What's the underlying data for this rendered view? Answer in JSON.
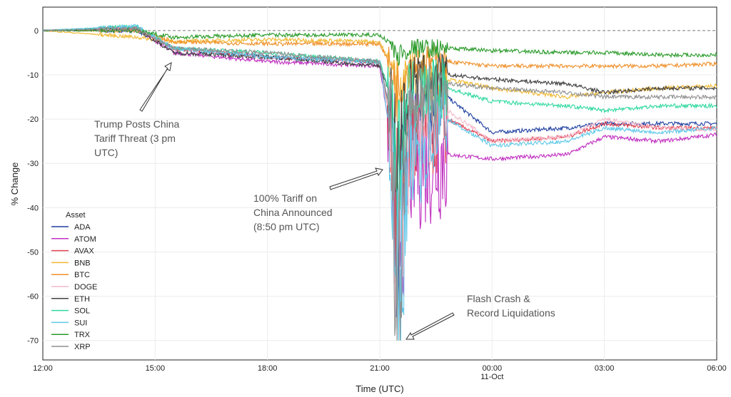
{
  "chart_data": {
    "type": "line",
    "title": "",
    "xlabel": "Time (UTC)",
    "ylabel": "% Change",
    "xlim_hours_since_12": [
      0,
      18
    ],
    "ylim": [
      -74.4,
      5.3
    ],
    "grid": true,
    "reference_line_y": 0,
    "x_ticks": [
      {
        "h": 0,
        "label": "12:00"
      },
      {
        "h": 3,
        "label": "15:00"
      },
      {
        "h": 6,
        "label": "18:00"
      },
      {
        "h": 9,
        "label": "21:00"
      },
      {
        "h": 12,
        "label": "00:00",
        "sub": "11-Oct"
      },
      {
        "h": 15,
        "label": "03:00"
      },
      {
        "h": 18,
        "label": "06:00"
      }
    ],
    "y_ticks": [
      0,
      -10,
      -20,
      -30,
      -40,
      -50,
      -60,
      -70
    ],
    "legend": {
      "title": "Asset",
      "placement": "lower-left"
    },
    "x_hours": [
      0,
      2.5,
      3.5,
      6,
      9,
      9.3,
      9.45,
      9.8,
      10.8,
      12,
      14,
      15,
      16.5,
      18
    ],
    "series": [
      {
        "name": "ADA",
        "color": "#1f3fa0",
        "values": [
          0,
          0,
          -4,
          -6,
          -7,
          -20,
          -45,
          -22,
          -15,
          -23,
          -22,
          -21,
          -21,
          -21
        ]
      },
      {
        "name": "ATOM",
        "color": "#c030c0",
        "values": [
          0,
          0.5,
          -5,
          -7,
          -8,
          -25,
          -50,
          -30,
          -28,
          -29,
          -28,
          -24,
          -25,
          -23.5
        ]
      },
      {
        "name": "AVAX",
        "color": "#e04050",
        "values": [
          0,
          0.5,
          -4,
          -6,
          -7,
          -22,
          -48,
          -25,
          -20,
          -25,
          -24,
          -21,
          -22,
          -22
        ]
      },
      {
        "name": "BNB",
        "color": "#f0b830",
        "values": [
          0,
          -1.5,
          -2.5,
          -2,
          -2.5,
          -8,
          -12,
          -10,
          -11,
          -13,
          -15,
          -14,
          -13,
          -12.5
        ]
      },
      {
        "name": "BTC",
        "color": "#f0902a",
        "values": [
          0,
          0,
          -2.5,
          -3,
          -3,
          -8,
          -14,
          -7,
          -7,
          -8,
          -8,
          -8,
          -8,
          -7.5
        ]
      },
      {
        "name": "DOGE",
        "color": "#f4b8c8",
        "values": [
          0,
          0.5,
          -4,
          -6,
          -7,
          -22,
          -50,
          -25,
          -18,
          -25,
          -24,
          -20,
          -22,
          -22.5
        ]
      },
      {
        "name": "ETH",
        "color": "#404040",
        "values": [
          0,
          0.5,
          -5,
          -6,
          -8,
          -15,
          -30,
          -12,
          -10,
          -11,
          -12,
          -14,
          -13,
          -13
        ]
      },
      {
        "name": "SOL",
        "color": "#30d8a0",
        "values": [
          0,
          1,
          -4,
          -5,
          -7,
          -15,
          -35,
          -15,
          -13,
          -16,
          -17,
          -18,
          -17,
          -17
        ]
      },
      {
        "name": "SUI",
        "color": "#60c8e8",
        "values": [
          0,
          1,
          -4,
          -6,
          -7,
          -25,
          -70,
          -28,
          -20,
          -26,
          -25,
          -22,
          -23,
          -22
        ]
      },
      {
        "name": "TRX",
        "color": "#2a9a2a",
        "values": [
          0,
          0,
          -1.5,
          -1,
          -1,
          -3,
          -6,
          -4,
          -4,
          -4.5,
          -5,
          -5,
          -5.5,
          -5.5
        ]
      },
      {
        "name": "XRP",
        "color": "#909090",
        "values": [
          0,
          0.5,
          -4,
          -5,
          -7,
          -20,
          -65,
          -18,
          -12,
          -13,
          -14,
          -15,
          -15,
          -15
        ]
      }
    ],
    "annotations": [
      {
        "lines": [
          "Trump Posts China",
          "Tariff Threat (3 pm",
          "UTC)"
        ]
      },
      {
        "lines": [
          "100% Tariff on",
          "China Announced",
          "(8:50 pm UTC)"
        ]
      },
      {
        "lines": [
          "Flash Crash &",
          "Record Liquidations"
        ]
      }
    ]
  }
}
